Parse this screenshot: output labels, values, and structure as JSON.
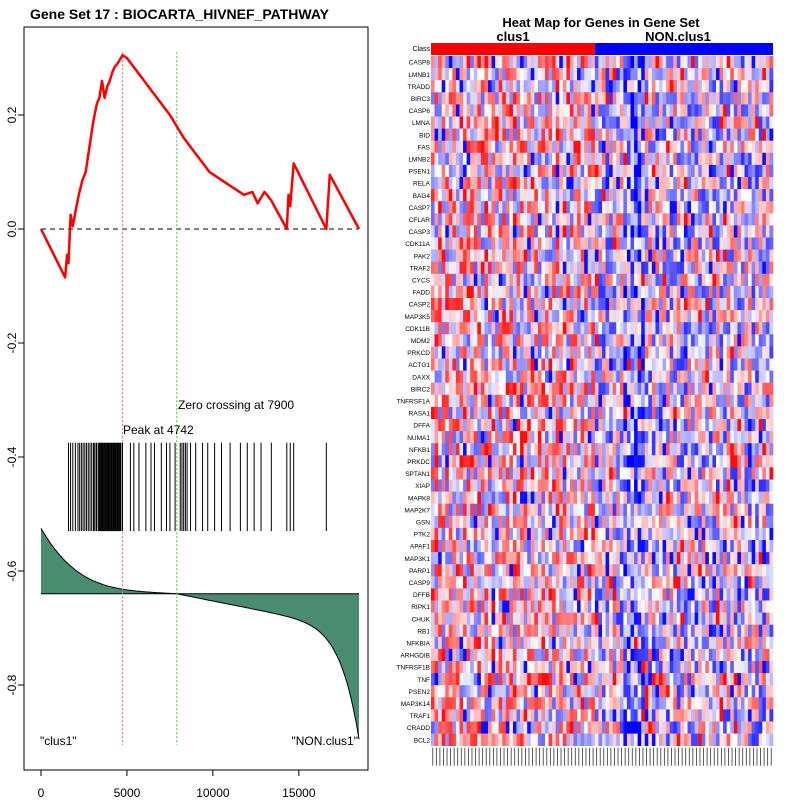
{
  "chart_data": [
    {
      "type": "line",
      "title": "Gene Set  17 : BIOCARTA_HIVNEF_PATHWAY",
      "xlabel": "",
      "ylabel": "",
      "xlim": [
        -800,
        19000
      ],
      "ylim": [
        -0.95,
        0.35
      ],
      "x_ticks": [
        0,
        5000,
        10000,
        15000
      ],
      "x_tick_labels": [
        "0",
        "5000",
        "10000",
        15000
      ],
      "y_ticks": [
        0.2,
        0.0,
        -0.2,
        -0.4,
        -0.6,
        -0.8
      ],
      "y_tick_labels": [
        "0.2",
        "0.0",
        "-0.2",
        "-0.4",
        "-0.6",
        "-0.8"
      ],
      "series": [
        {
          "role": "running-enrichment-score",
          "color": "#ff0000",
          "points": [
            [
              0,
              0.0
            ],
            [
              1400,
              -0.085
            ],
            [
              1520,
              -0.045
            ],
            [
              1600,
              -0.06
            ],
            [
              1720,
              0.025
            ],
            [
              1850,
              0.005
            ],
            [
              2000,
              0.03
            ],
            [
              2200,
              0.06
            ],
            [
              2400,
              0.085
            ],
            [
              2600,
              0.1
            ],
            [
              2800,
              0.14
            ],
            [
              3050,
              0.19
            ],
            [
              3250,
              0.22
            ],
            [
              3400,
              0.23
            ],
            [
              3550,
              0.26
            ],
            [
              3700,
              0.23
            ],
            [
              3850,
              0.25
            ],
            [
              4000,
              0.26
            ],
            [
              4150,
              0.275
            ],
            [
              4300,
              0.285
            ],
            [
              4450,
              0.29
            ],
            [
              4550,
              0.295
            ],
            [
              4650,
              0.3
            ],
            [
              4742,
              0.305
            ],
            [
              5000,
              0.3
            ],
            [
              5500,
              0.28
            ],
            [
              6000,
              0.26
            ],
            [
              6500,
              0.24
            ],
            [
              7000,
              0.22
            ],
            [
              7500,
              0.2
            ],
            [
              7900,
              0.18
            ],
            [
              8300,
              0.16
            ],
            [
              8800,
              0.14
            ],
            [
              9300,
              0.12
            ],
            [
              9800,
              0.1
            ],
            [
              10300,
              0.09
            ],
            [
              10800,
              0.08
            ],
            [
              11300,
              0.07
            ],
            [
              11800,
              0.06
            ],
            [
              12300,
              0.065
            ],
            [
              12600,
              0.045
            ],
            [
              13000,
              0.065
            ],
            [
              13400,
              0.05
            ],
            [
              14300,
              0.0
            ],
            [
              14400,
              0.06
            ],
            [
              14500,
              0.04
            ],
            [
              14700,
              0.115
            ],
            [
              16600,
              0.0
            ],
            [
              16800,
              0.095
            ],
            [
              18500,
              0.0
            ]
          ]
        }
      ],
      "baseline": 0.0,
      "peak_label": "Peak at 4742",
      "peak_x": 4742,
      "peak_color": "#ff6666",
      "zero_crossing_label": "Zero crossing at 7900",
      "zero_crossing_x": 7900,
      "zero_color": "#33cc33",
      "hit_positions": [
        1600,
        1720,
        1850,
        2000,
        2150,
        2250,
        2350,
        2450,
        2550,
        2650,
        2750,
        2850,
        2950,
        3050,
        3100,
        3200,
        3250,
        3350,
        3400,
        3450,
        3500,
        3550,
        3600,
        3650,
        3700,
        3750,
        3800,
        3850,
        3900,
        3950,
        4000,
        4050,
        4100,
        4150,
        4200,
        4250,
        4300,
        4350,
        4400,
        4450,
        4500,
        4550,
        4600,
        4650,
        4742,
        5200,
        5400,
        5700,
        6100,
        6400,
        6600,
        7000,
        7300,
        7500,
        7800,
        8100,
        8200,
        8300,
        8400,
        8500,
        8700,
        9000,
        9400,
        9700,
        10100,
        10500,
        11000,
        11600,
        12000,
        12400,
        12800,
        13400,
        14300,
        14500,
        14700,
        16600
      ],
      "hit_band_ylim": [
        -0.53,
        -0.375
      ],
      "ranked_metric": {
        "color": "#4a8c70",
        "baseline_y": -0.64,
        "top_y": -0.525,
        "bottom_y": -0.895,
        "cross_x": 7900,
        "n": 18500
      },
      "left_label": "\"clus1\"",
      "right_label": "\"NON.clus1\""
    },
    {
      "type": "heatmap",
      "title": "Heat Map for Genes in Gene Set",
      "class_label": "Class",
      "classes": [
        {
          "name": "clus1",
          "color": "#ff0000",
          "fraction": 0.475
        },
        {
          "name": "NON.clus1",
          "color": "#0000ff",
          "fraction": 0.525
        }
      ],
      "rows": [
        "CASP8",
        "LMNB1",
        "TRADD",
        "BIRC3",
        "CASP6",
        "LMNA",
        "BID",
        "FAS",
        "LMNB2",
        "PSEN1",
        "RELA",
        "BAG4",
        "CASP7",
        "CFLAR",
        "CASP3",
        "CDK11A",
        "PAK2",
        "TRAF2",
        "CYCS",
        "FADD",
        "CASP2",
        "MAP3K5",
        "CDK11B",
        "MDM2",
        "PRKCD",
        "ACTG1",
        "DAXX",
        "BIRC2",
        "TNFRSF1A",
        "RASA1",
        "DFFA",
        "NUMA1",
        "NFKB1",
        "PRKDC",
        "SPTAN1",
        "XIAP",
        "MAPK8",
        "MAP2K7",
        "GSN",
        "PTK2",
        "APAF1",
        "MAP3K1",
        "PARP1",
        "CASP9",
        "DFFB",
        "RIPK1",
        "CHUK",
        "RB1",
        "NFKBIA",
        "ARHGDIB",
        "TNFRSF1B",
        "TNF",
        "PSEN2",
        "MAP3K14",
        "TRAF1",
        "CRADD",
        "BCL2"
      ],
      "n_columns": 96,
      "low_color": "#0000ff",
      "mid_color": "#ffffff",
      "high_color": "#ff0000"
    }
  ]
}
